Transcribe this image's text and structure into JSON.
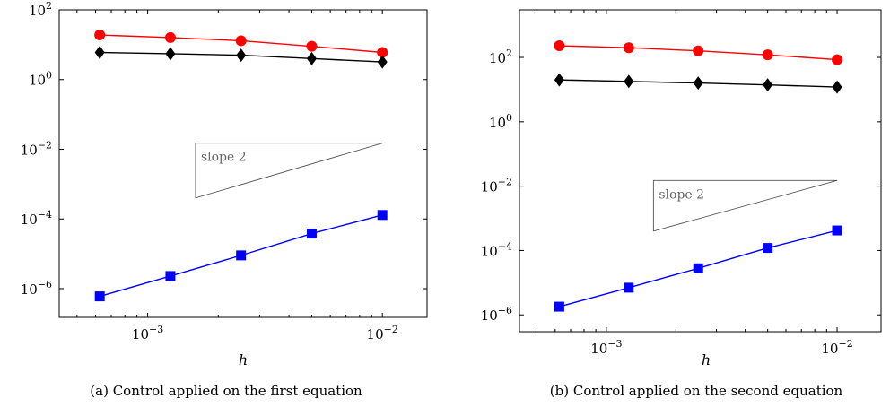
{
  "chart_data": [
    {
      "type": "line",
      "panel": "a",
      "caption": "(a) Control applied on the first equation",
      "xlabel": "h",
      "ylabel": "",
      "xscale": "log",
      "yscale": "log",
      "xlim": [
        0.00042,
        0.0155
      ],
      "ylim": [
        1.5e-07,
        100
      ],
      "xticks": [
        {
          "value": 0.001,
          "base": "10",
          "exp": "−3"
        },
        {
          "value": 0.01,
          "base": "10",
          "exp": "−2"
        }
      ],
      "yticks": [
        {
          "value": 100,
          "base": "10",
          "exp": "2"
        },
        {
          "value": 1,
          "base": "10",
          "exp": "0"
        },
        {
          "value": 0.01,
          "base": "10",
          "exp": "−2"
        },
        {
          "value": 0.0001,
          "base": "10",
          "exp": "−4"
        },
        {
          "value": 1e-06,
          "base": "10",
          "exp": "−6"
        }
      ],
      "grid": false,
      "x": [
        0.000625,
        0.00125,
        0.0025,
        0.005,
        0.01
      ],
      "series": [
        {
          "marker": "circle",
          "color": "#ff0000",
          "values": [
            19,
            16,
            13,
            9,
            6
          ]
        },
        {
          "marker": "diamond",
          "color": "#000000",
          "values": [
            6,
            5.5,
            5,
            4,
            3.2
          ]
        },
        {
          "marker": "square",
          "color": "#0000ff",
          "values": [
            6e-07,
            2.3e-06,
            9e-06,
            3.8e-05,
            0.00013
          ]
        }
      ],
      "slope_triangle": {
        "label": "slope 2",
        "x0": 0.0016,
        "x1": 0.01,
        "y_low": 0.0004,
        "y_high": 0.015
      }
    },
    {
      "type": "line",
      "panel": "b",
      "caption": "(b) Control applied on the second equation",
      "xlabel": "h",
      "ylabel": "",
      "xscale": "log",
      "yscale": "log",
      "xlim": [
        0.00042,
        0.0155
      ],
      "ylim": [
        3e-07,
        3000
      ],
      "xticks": [
        {
          "value": 0.001,
          "base": "10",
          "exp": "−3"
        },
        {
          "value": 0.01,
          "base": "10",
          "exp": "−2"
        }
      ],
      "yticks": [
        {
          "value": 100,
          "base": "10",
          "exp": "2"
        },
        {
          "value": 1,
          "base": "10",
          "exp": "0"
        },
        {
          "value": 0.01,
          "base": "10",
          "exp": "−2"
        },
        {
          "value": 0.0001,
          "base": "10",
          "exp": "−4"
        },
        {
          "value": 1e-06,
          "base": "10",
          "exp": "−6"
        }
      ],
      "grid": false,
      "x": [
        0.000625,
        0.00125,
        0.0025,
        0.005,
        0.01
      ],
      "series": [
        {
          "marker": "circle",
          "color": "#ff0000",
          "values": [
            230,
            200,
            160,
            120,
            85
          ]
        },
        {
          "marker": "diamond",
          "color": "#000000",
          "values": [
            20,
            18,
            16,
            14,
            12
          ]
        },
        {
          "marker": "square",
          "color": "#0000ff",
          "values": [
            1.8e-06,
            7e-06,
            2.8e-05,
            0.00012,
            0.00042
          ]
        }
      ],
      "slope_triangle": {
        "label": "slope 2",
        "x0": 0.0016,
        "x1": 0.01,
        "y_low": 0.0004,
        "y_high": 0.015
      }
    }
  ]
}
